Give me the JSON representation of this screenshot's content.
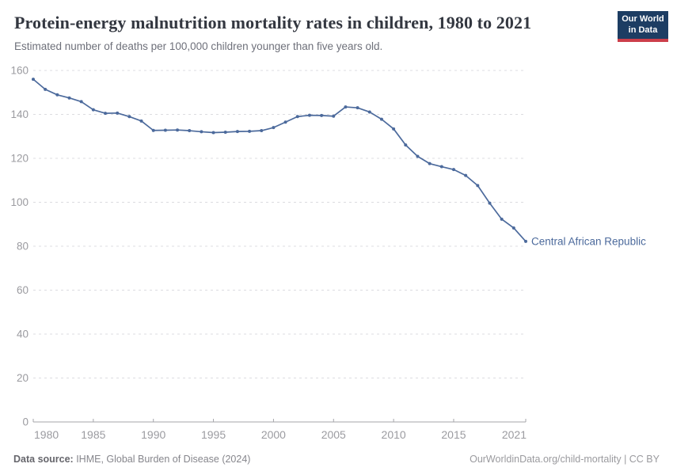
{
  "header": {
    "title": "Protein-energy malnutrition mortality rates in children, 1980 to 2021",
    "subtitle": "Estimated number of deaths per 100,000 children younger than five years old.",
    "logo": {
      "line1": "Our World",
      "line2": "in Data",
      "bg_color": "#1d3d63",
      "bar_color": "#cc3e4a"
    }
  },
  "chart_data": {
    "type": "line",
    "title": "Protein-energy malnutrition mortality rates in children, 1980 to 2021",
    "ylabel": "Estimated deaths per 100,000 children younger than five years old",
    "xlim": [
      1980,
      2021
    ],
    "ylim": [
      0,
      160
    ],
    "x_ticks": [
      1980,
      1985,
      1990,
      1995,
      2000,
      2005,
      2010,
      2015,
      2021
    ],
    "y_ticks": [
      0,
      20,
      40,
      60,
      80,
      100,
      120,
      140,
      160
    ],
    "grid": "horizontal-dashed",
    "legend_position": "end-of-line-label",
    "series": [
      {
        "name": "Central African Republic",
        "color": "#4c6a9c",
        "x": [
          1980,
          1981,
          1982,
          1983,
          1984,
          1985,
          1986,
          1987,
          1988,
          1989,
          1990,
          1991,
          1992,
          1993,
          1994,
          1995,
          1996,
          1997,
          1998,
          1999,
          2000,
          2001,
          2002,
          2003,
          2004,
          2005,
          2006,
          2007,
          2008,
          2009,
          2010,
          2011,
          2012,
          2013,
          2014,
          2015,
          2016,
          2017,
          2018,
          2019,
          2020,
          2021
        ],
        "values": [
          156.0,
          151.4,
          148.9,
          147.5,
          145.8,
          142.1,
          140.5,
          140.6,
          139.0,
          137.0,
          132.7,
          132.8,
          132.9,
          132.6,
          132.1,
          131.7,
          131.9,
          132.2,
          132.3,
          132.6,
          134.0,
          136.5,
          139.0,
          139.6,
          139.5,
          139.2,
          143.4,
          143.0,
          141.1,
          137.8,
          133.4,
          126.1,
          120.9,
          117.6,
          116.2,
          114.9,
          112.2,
          107.6,
          99.6,
          92.3,
          88.3,
          82.2
        ]
      }
    ],
    "colors": {
      "grid": "#dcdce0",
      "axis": "#a5a5aa",
      "tick_label": "#9b9ba0",
      "line": "#4c6a9c"
    }
  },
  "footer": {
    "datasource_label": "Data source:",
    "datasource_value": " IHME, Global Burden of Disease (2024)",
    "link": "OurWorldinData.org/child-mortality | CC BY"
  }
}
